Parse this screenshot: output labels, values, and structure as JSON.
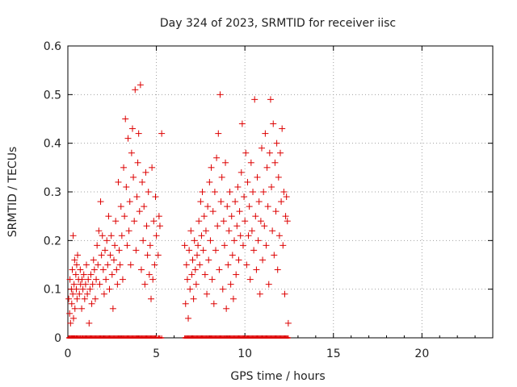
{
  "chart_data": {
    "type": "scatter",
    "title": "Day 324 of 2023, SRMTID for receiver iisc",
    "xlabel": "GPS time / hours",
    "ylabel": "SRMTID / TECUs",
    "xlim": [
      0,
      24
    ],
    "ylim": [
      0,
      0.6
    ],
    "xticks": [
      0,
      5,
      10,
      15,
      20
    ],
    "yticks": [
      0,
      0.1,
      0.2,
      0.3,
      0.4,
      0.5,
      0.6
    ],
    "xtick_labels": [
      "0",
      "5",
      "10",
      "15",
      "20"
    ],
    "ytick_labels": [
      "0",
      "0.1",
      "0.2",
      "0.3",
      "0.4",
      "0.5",
      "0.6"
    ],
    "grid": true,
    "marker": "+",
    "series": [
      {
        "name": "SRMTID",
        "color": "#dd0000",
        "points": [
          [
            0.05,
            0.08
          ],
          [
            0.1,
            0.05
          ],
          [
            0.12,
            0.12
          ],
          [
            0.15,
            0.03
          ],
          [
            0.2,
            0.1
          ],
          [
            0.22,
            0.07
          ],
          [
            0.25,
            0.14
          ],
          [
            0.28,
            0.09
          ],
          [
            0.3,
            0.21
          ],
          [
            0.32,
            0.04
          ],
          [
            0.35,
            0.11
          ],
          [
            0.38,
            0.16
          ],
          [
            0.4,
            0.06
          ],
          [
            0.45,
            0.13
          ],
          [
            0.48,
            0.1
          ],
          [
            0.5,
            0.15
          ],
          [
            0.52,
            0.08
          ],
          [
            0.55,
            0.17
          ],
          [
            0.6,
            0.12
          ],
          [
            0.65,
            0.09
          ],
          [
            0.7,
            0.14
          ],
          [
            0.72,
            0.11
          ],
          [
            0.78,
            0.06
          ],
          [
            0.8,
            0.12
          ],
          [
            0.85,
            0.1
          ],
          [
            0.9,
            0.13
          ],
          [
            0.95,
            0.08
          ],
          [
            1.0,
            0.11
          ],
          [
            1.05,
            0.15
          ],
          [
            1.1,
            0.09
          ],
          [
            1.15,
            0.12
          ],
          [
            1.2,
            0.03
          ],
          [
            1.25,
            0.1
          ],
          [
            1.3,
            0.13
          ],
          [
            1.35,
            0.07
          ],
          [
            1.4,
            0.11
          ],
          [
            1.45,
            0.16
          ],
          [
            1.5,
            0.14
          ],
          [
            1.55,
            0.08
          ],
          [
            1.6,
            0.12
          ],
          [
            1.65,
            0.19
          ],
          [
            1.7,
            0.15
          ],
          [
            1.75,
            0.22
          ],
          [
            1.8,
            0.11
          ],
          [
            1.85,
            0.28
          ],
          [
            1.9,
            0.17
          ],
          [
            1.95,
            0.21
          ],
          [
            2.0,
            0.14
          ],
          [
            2.05,
            0.09
          ],
          [
            2.1,
            0.18
          ],
          [
            2.15,
            0.12
          ],
          [
            2.2,
            0.2
          ],
          [
            2.25,
            0.15
          ],
          [
            2.3,
            0.25
          ],
          [
            2.35,
            0.1
          ],
          [
            2.4,
            0.17
          ],
          [
            2.45,
            0.21
          ],
          [
            2.5,
            0.13
          ],
          [
            2.55,
            0.06
          ],
          [
            2.6,
            0.16
          ],
          [
            2.65,
            0.19
          ],
          [
            2.7,
            0.24
          ],
          [
            2.75,
            0.14
          ],
          [
            2.8,
            0.11
          ],
          [
            2.85,
            0.32
          ],
          [
            2.9,
            0.18
          ],
          [
            2.95,
            0.15
          ],
          [
            3.0,
            0.27
          ],
          [
            3.05,
            0.21
          ],
          [
            3.1,
            0.12
          ],
          [
            3.15,
            0.35
          ],
          [
            3.2,
            0.25
          ],
          [
            3.25,
            0.45
          ],
          [
            3.3,
            0.31
          ],
          [
            3.35,
            0.19
          ],
          [
            3.4,
            0.41
          ],
          [
            3.45,
            0.22
          ],
          [
            3.5,
            0.28
          ],
          [
            3.55,
            0.15
          ],
          [
            3.6,
            0.38
          ],
          [
            3.65,
            0.43
          ],
          [
            3.7,
            0.33
          ],
          [
            3.75,
            0.24
          ],
          [
            3.8,
            0.51
          ],
          [
            3.85,
            0.18
          ],
          [
            3.9,
            0.29
          ],
          [
            3.95,
            0.36
          ],
          [
            4.0,
            0.42
          ],
          [
            4.05,
            0.26
          ],
          [
            4.1,
            0.52
          ],
          [
            4.15,
            0.14
          ],
          [
            4.2,
            0.32
          ],
          [
            4.25,
            0.2
          ],
          [
            4.3,
            0.27
          ],
          [
            4.35,
            0.11
          ],
          [
            4.4,
            0.34
          ],
          [
            4.45,
            0.23
          ],
          [
            4.5,
            0.17
          ],
          [
            4.55,
            0.3
          ],
          [
            4.6,
            0.13
          ],
          [
            4.65,
            0.19
          ],
          [
            4.7,
            0.08
          ],
          [
            4.75,
            0.35
          ],
          [
            4.8,
            0.12
          ],
          [
            4.85,
            0.24
          ],
          [
            4.9,
            0.15
          ],
          [
            4.95,
            0.29
          ],
          [
            5.0,
            0.21
          ],
          [
            5.1,
            0.17
          ],
          [
            5.15,
            0.25
          ],
          [
            5.2,
            0.23
          ],
          [
            5.3,
            0.42
          ],
          [
            6.6,
            0.19
          ],
          [
            6.65,
            0.07
          ],
          [
            6.7,
            0.15
          ],
          [
            6.75,
            0.12
          ],
          [
            6.8,
            0.04
          ],
          [
            6.85,
            0.18
          ],
          [
            6.9,
            0.1
          ],
          [
            6.95,
            0.22
          ],
          [
            7.0,
            0.13
          ],
          [
            7.05,
            0.16
          ],
          [
            7.1,
            0.08
          ],
          [
            7.15,
            0.2
          ],
          [
            7.2,
            0.14
          ],
          [
            7.25,
            0.11
          ],
          [
            7.3,
            0.17
          ],
          [
            7.35,
            0.19
          ],
          [
            7.4,
            0.24
          ],
          [
            7.45,
            0.15
          ],
          [
            7.5,
            0.28
          ],
          [
            7.55,
            0.21
          ],
          [
            7.6,
            0.3
          ],
          [
            7.65,
            0.18
          ],
          [
            7.7,
            0.25
          ],
          [
            7.75,
            0.13
          ],
          [
            7.8,
            0.22
          ],
          [
            7.85,
            0.09
          ],
          [
            7.9,
            0.27
          ],
          [
            7.95,
            0.16
          ],
          [
            8.0,
            0.32
          ],
          [
            8.05,
            0.2
          ],
          [
            8.1,
            0.35
          ],
          [
            8.15,
            0.12
          ],
          [
            8.2,
            0.26
          ],
          [
            8.25,
            0.07
          ],
          [
            8.3,
            0.3
          ],
          [
            8.35,
            0.18
          ],
          [
            8.4,
            0.37
          ],
          [
            8.45,
            0.23
          ],
          [
            8.5,
            0.42
          ],
          [
            8.55,
            0.14
          ],
          [
            8.6,
            0.5
          ],
          [
            8.65,
            0.28
          ],
          [
            8.7,
            0.33
          ],
          [
            8.75,
            0.1
          ],
          [
            8.8,
            0.24
          ],
          [
            8.85,
            0.19
          ],
          [
            8.9,
            0.36
          ],
          [
            8.95,
            0.06
          ],
          [
            9.0,
            0.27
          ],
          [
            9.05,
            0.15
          ],
          [
            9.1,
            0.22
          ],
          [
            9.15,
            0.3
          ],
          [
            9.2,
            0.11
          ],
          [
            9.25,
            0.25
          ],
          [
            9.3,
            0.17
          ],
          [
            9.35,
            0.08
          ],
          [
            9.4,
            0.2
          ],
          [
            9.45,
            0.28
          ],
          [
            9.5,
            0.13
          ],
          [
            9.55,
            0.23
          ],
          [
            9.6,
            0.31
          ],
          [
            9.65,
            0.16
          ],
          [
            9.7,
            0.26
          ],
          [
            9.75,
            0.21
          ],
          [
            9.8,
            0.34
          ],
          [
            9.85,
            0.44
          ],
          [
            9.9,
            0.19
          ],
          [
            9.95,
            0.29
          ],
          [
            10.0,
            0.24
          ],
          [
            10.05,
            0.38
          ],
          [
            10.1,
            0.15
          ],
          [
            10.15,
            0.32
          ],
          [
            10.2,
            0.21
          ],
          [
            10.25,
            0.27
          ],
          [
            10.3,
            0.12
          ],
          [
            10.35,
            0.36
          ],
          [
            10.4,
            0.22
          ],
          [
            10.45,
            0.3
          ],
          [
            10.5,
            0.18
          ],
          [
            10.55,
            0.49
          ],
          [
            10.6,
            0.25
          ],
          [
            10.65,
            0.14
          ],
          [
            10.7,
            0.33
          ],
          [
            10.75,
            0.2
          ],
          [
            10.8,
            0.28
          ],
          [
            10.85,
            0.09
          ],
          [
            10.9,
            0.24
          ],
          [
            10.95,
            0.39
          ],
          [
            11.0,
            0.16
          ],
          [
            11.05,
            0.3
          ],
          [
            11.1,
            0.23
          ],
          [
            11.15,
            0.42
          ],
          [
            11.2,
            0.19
          ],
          [
            11.25,
            0.35
          ],
          [
            11.3,
            0.27
          ],
          [
            11.35,
            0.11
          ],
          [
            11.4,
            0.38
          ],
          [
            11.45,
            0.49
          ],
          [
            11.5,
            0.31
          ],
          [
            11.55,
            0.22
          ],
          [
            11.6,
            0.44
          ],
          [
            11.65,
            0.17
          ],
          [
            11.7,
            0.36
          ],
          [
            11.75,
            0.26
          ],
          [
            11.8,
            0.4
          ],
          [
            11.85,
            0.14
          ],
          [
            11.9,
            0.33
          ],
          [
            11.95,
            0.21
          ],
          [
            12.0,
            0.38
          ],
          [
            12.05,
            0.28
          ],
          [
            12.1,
            0.43
          ],
          [
            12.15,
            0.19
          ],
          [
            12.2,
            0.3
          ],
          [
            12.25,
            0.09
          ],
          [
            12.3,
            0.25
          ],
          [
            12.35,
            0.29
          ],
          [
            12.4,
            0.24
          ],
          [
            12.45,
            0.03
          ]
        ]
      }
    ]
  }
}
